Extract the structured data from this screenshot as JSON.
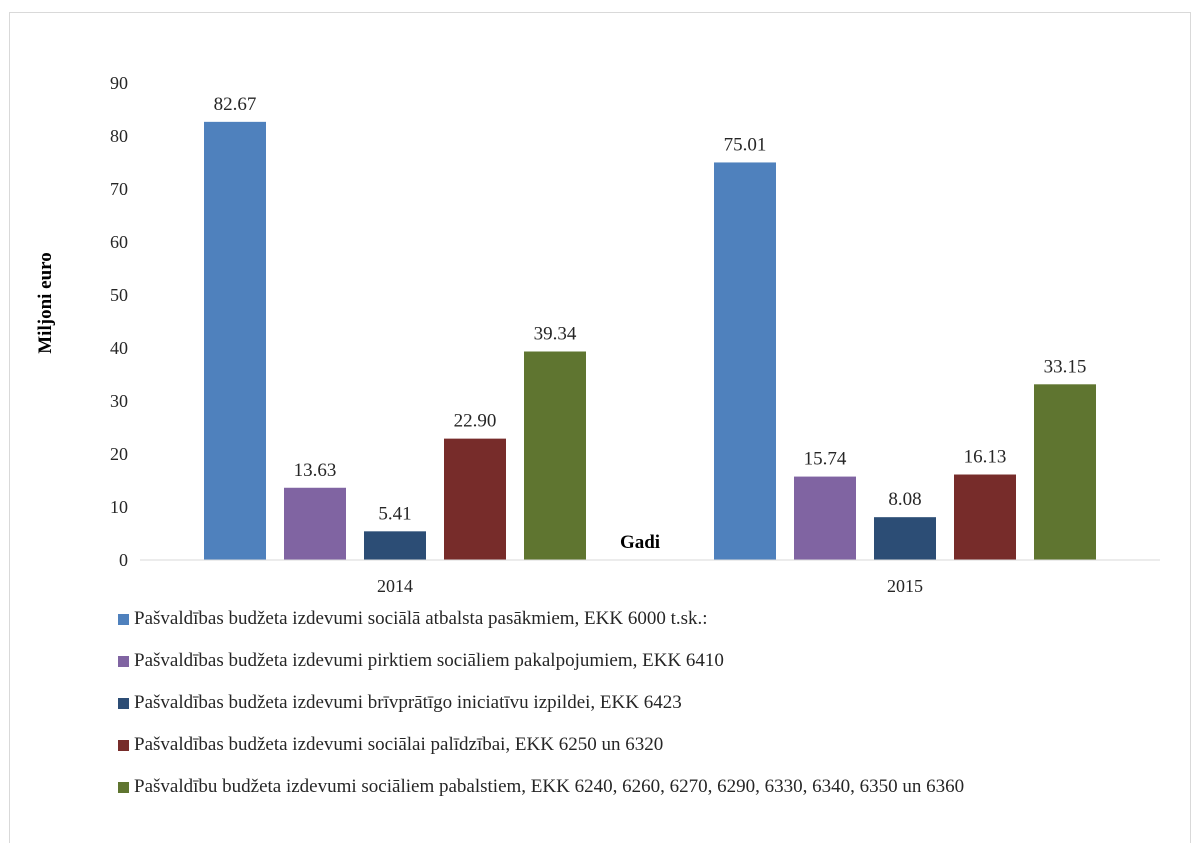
{
  "chart_data": {
    "type": "bar",
    "categories": [
      "2014",
      "2015"
    ],
    "series": [
      {
        "name": "Pašvaldības budžeta izdevumi sociālā atbalsta pasākmiem, EKK 6000 t.sk.:",
        "values": [
          82.67,
          75.01
        ],
        "labels": [
          "82.67",
          "75.01"
        ],
        "color": "#4f81bd"
      },
      {
        "name": "Pašvaldības budžeta izdevumi pirktiem sociāliem pakalpojumiem, EKK 6410",
        "values": [
          13.63,
          15.74
        ],
        "labels": [
          "13.63",
          "15.74"
        ],
        "color": "#8064a2"
      },
      {
        "name": "Pašvaldības budžeta izdevumi brīvprātīgo iniciatīvu izpildei, EKK 6423",
        "values": [
          5.41,
          8.08
        ],
        "labels": [
          "5.41",
          "8.08"
        ],
        "color": "#2c4d75"
      },
      {
        "name": "Pašvaldības budžeta izdevumi sociālai palīdzībai, EKK 6250 un 6320",
        "values": [
          22.9,
          16.13
        ],
        "labels": [
          "22.90",
          "16.13"
        ],
        "color": "#772c2a"
      },
      {
        "name": "Pašvaldību budžeta izdevumi sociāliem pabalstiem, EKK 6240, 6260, 6270, 6290, 6330, 6340, 6350 un 6360",
        "values": [
          39.34,
          33.15
        ],
        "labels": [
          "39.34",
          "33.15"
        ],
        "color": "#5f7530"
      }
    ],
    "ylabel": "Miljoni euro",
    "xlabel": "Gadi",
    "ylim": [
      0,
      90
    ],
    "yticks": [
      "0",
      "10",
      "20",
      "30",
      "40",
      "50",
      "60",
      "70",
      "80",
      "90"
    ],
    "grid": false,
    "legend_position": "bottom"
  }
}
